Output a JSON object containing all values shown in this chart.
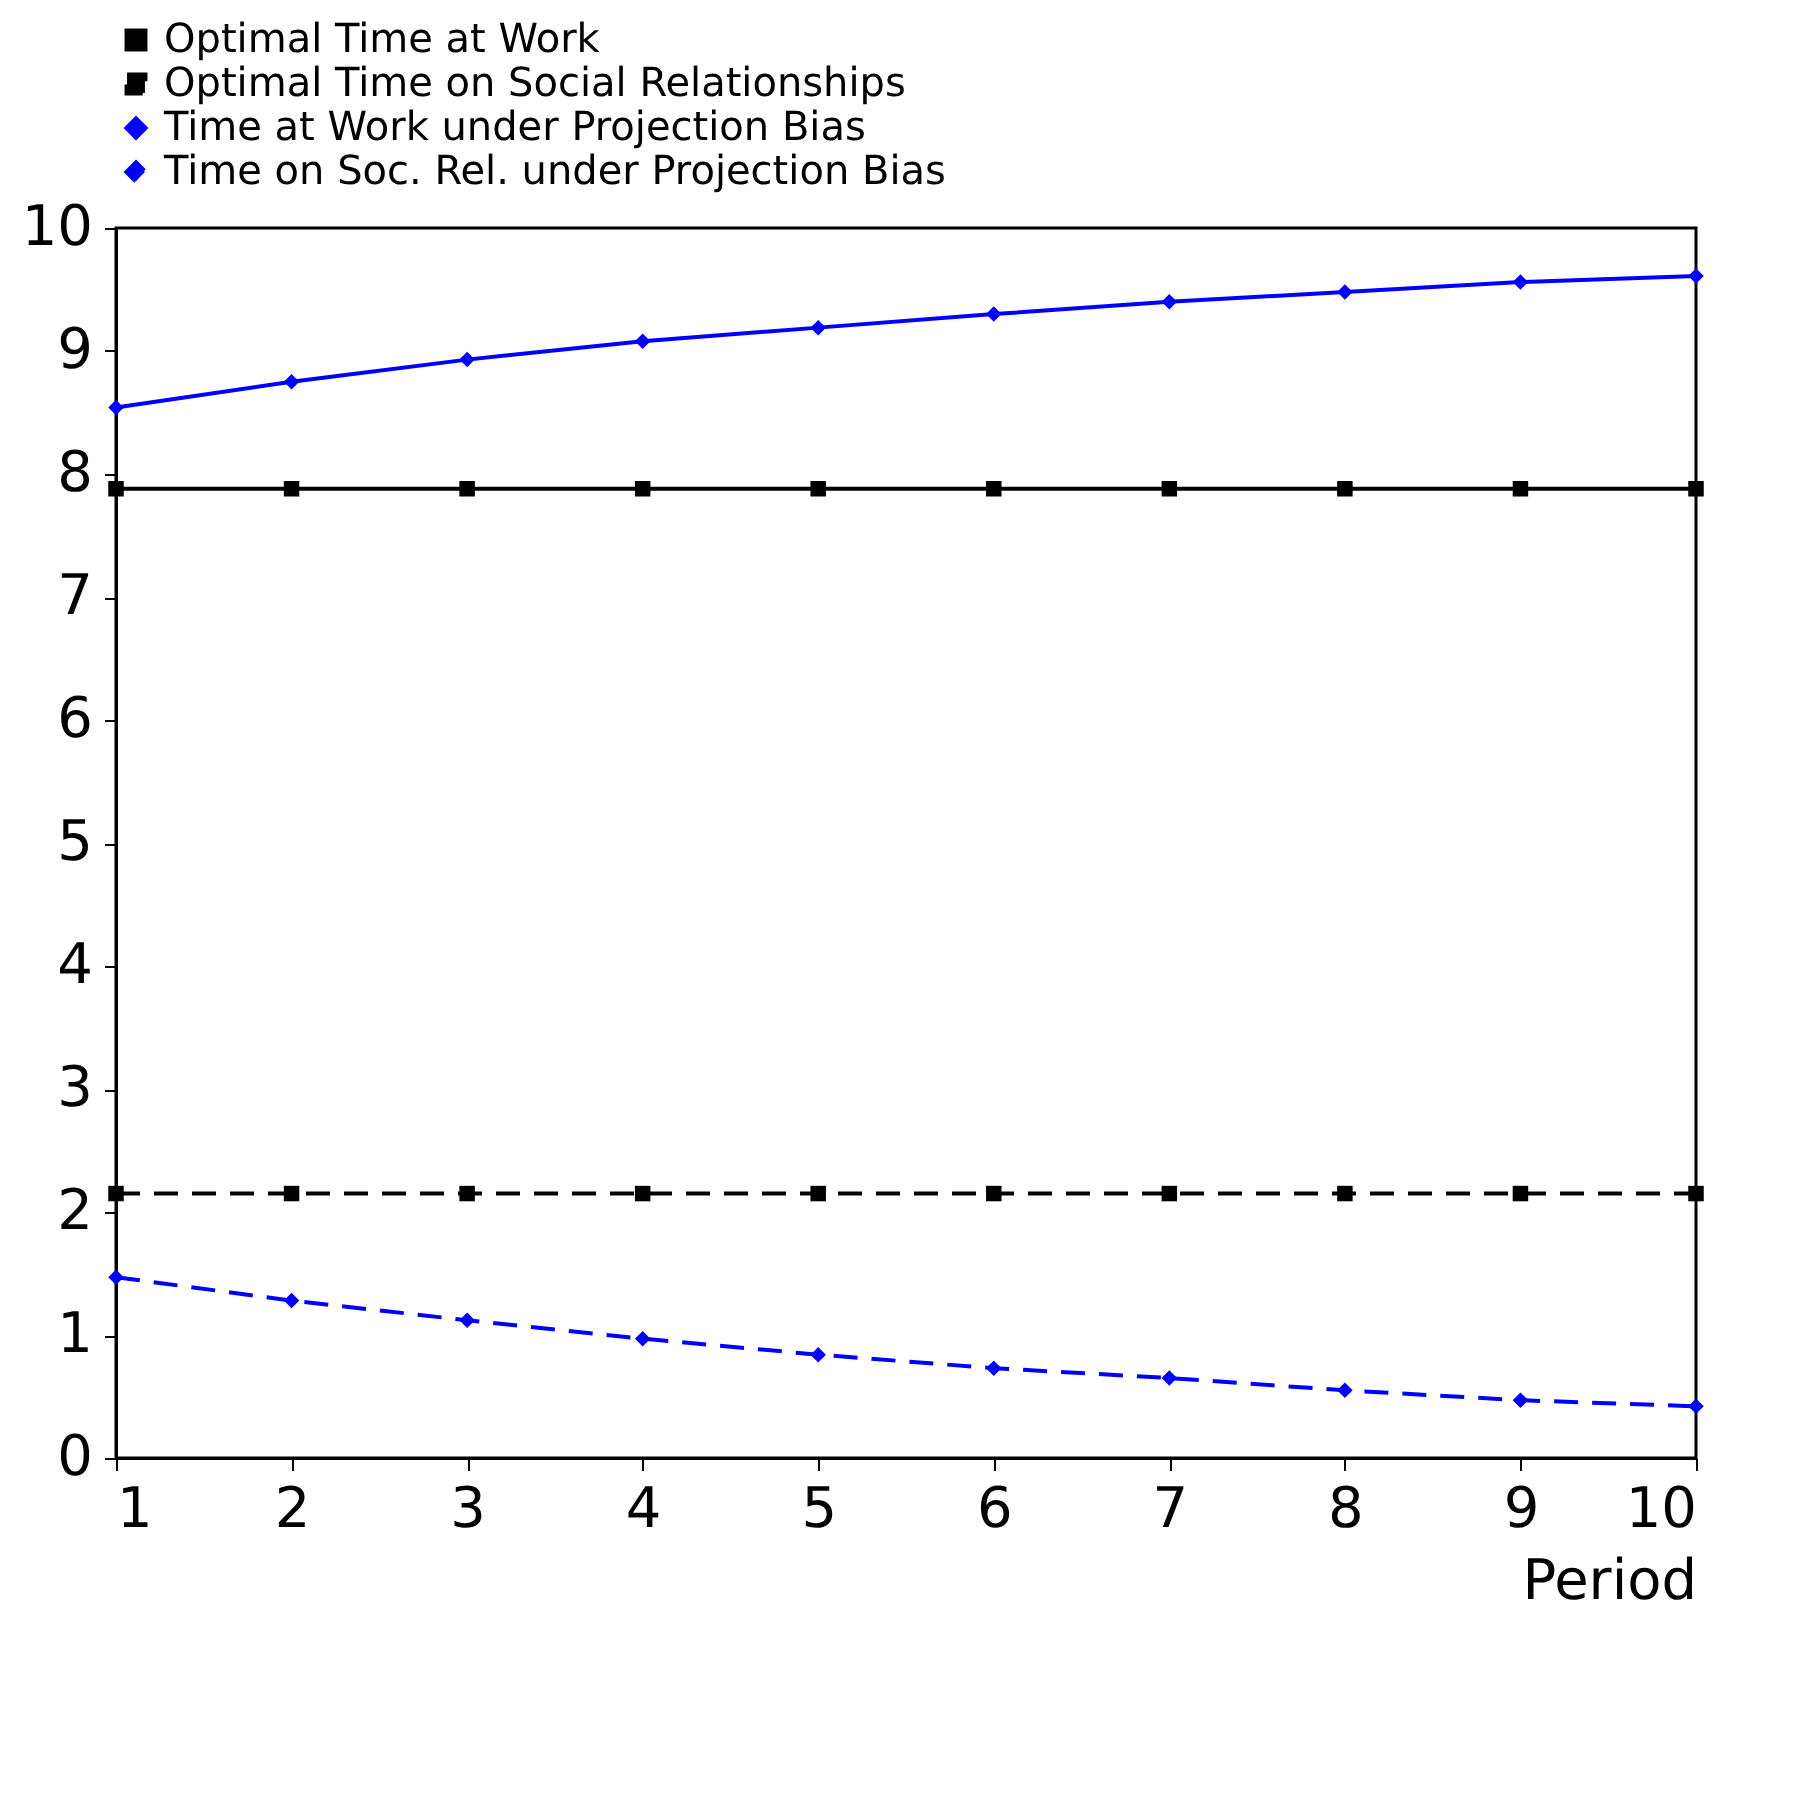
{
  "chart_data": {
    "type": "line",
    "xlabel": "Period",
    "x": [
      1,
      2,
      3,
      4,
      5,
      6,
      7,
      8,
      9,
      10
    ],
    "xlim": [
      1,
      10
    ],
    "xticks": [
      1,
      2,
      3,
      4,
      5,
      6,
      7,
      8,
      9,
      10
    ],
    "ylim": [
      0,
      10
    ],
    "yticks": [
      0,
      1,
      2,
      3,
      4,
      5,
      6,
      7,
      8,
      9,
      10
    ],
    "grid": false,
    "legend": "top",
    "series": [
      {
        "name": "Optimal Time at Work",
        "color": "#000000",
        "marker": "square",
        "line_style": "solid",
        "values": [
          7.88,
          7.88,
          7.88,
          7.88,
          7.88,
          7.88,
          7.88,
          7.88,
          7.88,
          7.88
        ]
      },
      {
        "name": "Optimal Time on Social Relationships",
        "color": "#000000",
        "marker": "square",
        "line_style": "dashed",
        "values": [
          2.15,
          2.15,
          2.15,
          2.15,
          2.15,
          2.15,
          2.15,
          2.15,
          2.15,
          2.15
        ]
      },
      {
        "name": "Time at Work under Projection Bias",
        "color": "#0000ff",
        "marker": "diamond",
        "line_style": "solid",
        "values": [
          8.54,
          8.75,
          8.93,
          9.08,
          9.19,
          9.3,
          9.4,
          9.48,
          9.56,
          9.61
        ]
      },
      {
        "name": "Time on Soc. Rel. under Projection Bias",
        "color": "#0000ff",
        "marker": "diamond",
        "line_style": "dashed",
        "values": [
          1.47,
          1.28,
          1.12,
          0.97,
          0.84,
          0.73,
          0.65,
          0.55,
          0.47,
          0.42
        ]
      }
    ]
  }
}
